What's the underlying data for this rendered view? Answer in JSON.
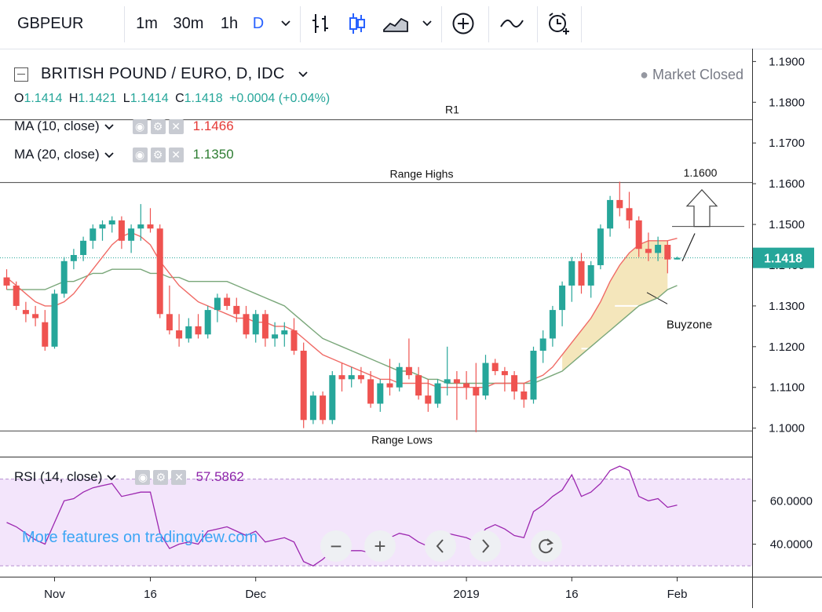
{
  "toolbar": {
    "symbol": "GBPEUR",
    "timeframes": [
      "1m",
      "30m",
      "1h",
      "D"
    ],
    "active_timeframe": "D"
  },
  "legend": {
    "title": "BRITISH POUND / EURO, D, IDC",
    "market_status": "Market Closed",
    "ohlc": {
      "o_label": "O",
      "o": "1.1414",
      "h_label": "H",
      "h": "1.1421",
      "l_label": "L",
      "l": "1.1414",
      "c_label": "C",
      "c": "1.1418",
      "change": "+0.0004 (+0.04%)"
    }
  },
  "indicators": {
    "ma10": {
      "label": "MA (10, close)",
      "value": "1.1466",
      "color": "#e53935"
    },
    "ma20": {
      "label": "MA (20, close)",
      "value": "1.1350",
      "color": "#2e7d32"
    },
    "rsi": {
      "label": "RSI (14, close)",
      "value": "57.5862",
      "color": "#8e24aa"
    }
  },
  "watermark": "More features on tradingview.com",
  "colors": {
    "up": "#26a69a",
    "down": "#ef5350",
    "ma10": "#f06b66",
    "ma20": "#7aa77a",
    "rsi": "#9c27b0",
    "rsi_band": "#f3e5fb",
    "buyzone": "#f3e3b4",
    "price_tag": "#26a69a"
  },
  "chart_data": {
    "type": "candlestick",
    "symbol": "GBPEUR",
    "interval": "D",
    "ylim": [
      1.093,
      1.192
    ],
    "y_ticks": [
      "1.1900",
      "1.1800",
      "1.1700",
      "1.1600",
      "1.1500",
      "1.1400",
      "1.1300",
      "1.1200",
      "1.1100",
      "1.1000"
    ],
    "x_ticks": [
      {
        "label": "Nov",
        "index": 5
      },
      {
        "label": "16",
        "index": 15
      },
      {
        "label": "Dec",
        "index": 26
      },
      {
        "label": "2019",
        "index": 48
      },
      {
        "label": "16",
        "index": 59
      },
      {
        "label": "Feb",
        "index": 70
      }
    ],
    "last_price": "1.1418",
    "annotations": {
      "r1": {
        "label": "R1",
        "price": 1.1757
      },
      "range_highs": {
        "label": "Range Highs",
        "price": 1.1603
      },
      "range_lows": {
        "label": "Range Lows",
        "price": 1.0993
      },
      "target": {
        "label": "1.1600",
        "price": 1.1495
      },
      "buyzone_label": "Buyzone"
    },
    "candles": [
      [
        1.137,
        1.139,
        1.134,
        1.135
      ],
      [
        1.135,
        1.136,
        1.129,
        1.13
      ],
      [
        1.129,
        1.131,
        1.126,
        1.128
      ],
      [
        1.128,
        1.13,
        1.125,
        1.127
      ],
      [
        1.126,
        1.129,
        1.119,
        1.12
      ],
      [
        1.12,
        1.134,
        1.1195,
        1.133
      ],
      [
        1.133,
        1.142,
        1.132,
        1.141
      ],
      [
        1.141,
        1.144,
        1.139,
        1.1425
      ],
      [
        1.1425,
        1.147,
        1.141,
        1.146
      ],
      [
        1.146,
        1.15,
        1.144,
        1.149
      ],
      [
        1.149,
        1.151,
        1.146,
        1.15
      ],
      [
        1.15,
        1.152,
        1.148,
        1.151
      ],
      [
        1.151,
        1.152,
        1.144,
        1.146
      ],
      [
        1.146,
        1.15,
        1.143,
        1.149
      ],
      [
        1.149,
        1.155,
        1.146,
        1.15
      ],
      [
        1.15,
        1.154,
        1.148,
        1.149
      ],
      [
        1.149,
        1.15,
        1.127,
        1.128
      ],
      [
        1.128,
        1.135,
        1.123,
        1.124
      ],
      [
        1.124,
        1.128,
        1.12,
        1.122
      ],
      [
        1.122,
        1.127,
        1.121,
        1.125
      ],
      [
        1.125,
        1.128,
        1.122,
        1.123
      ],
      [
        1.123,
        1.13,
        1.122,
        1.129
      ],
      [
        1.129,
        1.133,
        1.126,
        1.132
      ],
      [
        1.132,
        1.133,
        1.129,
        1.13
      ],
      [
        1.13,
        1.132,
        1.126,
        1.128
      ],
      [
        1.128,
        1.13,
        1.122,
        1.123
      ],
      [
        1.123,
        1.129,
        1.121,
        1.128
      ],
      [
        1.128,
        1.129,
        1.12,
        1.122
      ],
      [
        1.122,
        1.126,
        1.12,
        1.123
      ],
      [
        1.123,
        1.126,
        1.12,
        1.124
      ],
      [
        1.124,
        1.127,
        1.118,
        1.119
      ],
      [
        1.119,
        1.121,
        1.1,
        1.102
      ],
      [
        1.102,
        1.109,
        1.101,
        1.108
      ],
      [
        1.108,
        1.109,
        1.101,
        1.102
      ],
      [
        1.102,
        1.114,
        1.101,
        1.113
      ],
      [
        1.113,
        1.116,
        1.109,
        1.112
      ],
      [
        1.112,
        1.115,
        1.11,
        1.113
      ],
      [
        1.113,
        1.115,
        1.111,
        1.112
      ],
      [
        1.112,
        1.114,
        1.105,
        1.106
      ],
      [
        1.106,
        1.112,
        1.104,
        1.111
      ],
      [
        1.111,
        1.117,
        1.108,
        1.11
      ],
      [
        1.11,
        1.116,
        1.109,
        1.115
      ],
      [
        1.115,
        1.122,
        1.112,
        1.113
      ],
      [
        1.113,
        1.115,
        1.107,
        1.108
      ],
      [
        1.108,
        1.112,
        1.104,
        1.106
      ],
      [
        1.106,
        1.112,
        1.105,
        1.111
      ],
      [
        1.111,
        1.12,
        1.108,
        1.112
      ],
      [
        1.112,
        1.114,
        1.102,
        1.111
      ],
      [
        1.111,
        1.114,
        1.107,
        1.11
      ],
      [
        1.11,
        1.116,
        1.099,
        1.108
      ],
      [
        1.108,
        1.118,
        1.107,
        1.116
      ],
      [
        1.116,
        1.117,
        1.113,
        1.114
      ],
      [
        1.114,
        1.115,
        1.109,
        1.113
      ],
      [
        1.113,
        1.114,
        1.107,
        1.109
      ],
      [
        1.109,
        1.111,
        1.105,
        1.107
      ],
      [
        1.107,
        1.12,
        1.106,
        1.119
      ],
      [
        1.119,
        1.124,
        1.116,
        1.122
      ],
      [
        1.122,
        1.13,
        1.12,
        1.129
      ],
      [
        1.129,
        1.136,
        1.125,
        1.135
      ],
      [
        1.135,
        1.142,
        1.131,
        1.141
      ],
      [
        1.141,
        1.143,
        1.133,
        1.135
      ],
      [
        1.135,
        1.141,
        1.132,
        1.14
      ],
      [
        1.14,
        1.15,
        1.139,
        1.149
      ],
      [
        1.149,
        1.157,
        1.147,
        1.156
      ],
      [
        1.156,
        1.1605,
        1.152,
        1.154
      ],
      [
        1.154,
        1.158,
        1.149,
        1.151
      ],
      [
        1.151,
        1.152,
        1.142,
        1.144
      ],
      [
        1.144,
        1.148,
        1.141,
        1.143
      ],
      [
        1.143,
        1.147,
        1.141,
        1.145
      ],
      [
        1.145,
        1.146,
        1.138,
        1.1414
      ],
      [
        1.1414,
        1.1421,
        1.1414,
        1.1418
      ]
    ],
    "ma10": [
      1.137,
      1.135,
      1.133,
      1.131,
      1.13,
      1.13,
      1.131,
      1.133,
      1.136,
      1.139,
      1.142,
      1.145,
      1.147,
      1.148,
      1.147,
      1.145,
      1.141,
      1.138,
      1.135,
      1.133,
      1.131,
      1.13,
      1.129,
      1.128,
      1.127,
      1.127,
      1.126,
      1.126,
      1.125,
      1.125,
      1.124,
      1.122,
      1.12,
      1.118,
      1.117,
      1.116,
      1.115,
      1.114,
      1.113,
      1.112,
      1.112,
      1.111,
      1.111,
      1.111,
      1.111,
      1.11,
      1.11,
      1.11,
      1.11,
      1.11,
      1.11,
      1.111,
      1.111,
      1.111,
      1.111,
      1.112,
      1.113,
      1.115,
      1.118,
      1.121,
      1.124,
      1.127,
      1.131,
      1.136,
      1.14,
      1.143,
      1.145,
      1.146,
      1.146,
      1.146,
      1.1466
    ],
    "ma20": [
      1.134,
      1.134,
      1.134,
      1.134,
      1.134,
      1.135,
      1.136,
      1.136,
      1.137,
      1.138,
      1.138,
      1.139,
      1.139,
      1.139,
      1.139,
      1.138,
      1.138,
      1.137,
      1.137,
      1.136,
      1.136,
      1.136,
      1.136,
      1.136,
      1.135,
      1.134,
      1.133,
      1.132,
      1.131,
      1.13,
      1.128,
      1.126,
      1.124,
      1.122,
      1.121,
      1.12,
      1.119,
      1.118,
      1.117,
      1.116,
      1.115,
      1.114,
      1.114,
      1.113,
      1.112,
      1.112,
      1.111,
      1.111,
      1.111,
      1.111,
      1.111,
      1.111,
      1.111,
      1.111,
      1.111,
      1.111,
      1.112,
      1.113,
      1.114,
      1.116,
      1.118,
      1.12,
      1.122,
      1.124,
      1.126,
      1.128,
      1.13,
      1.131,
      1.132,
      1.134,
      1.135
    ],
    "rsi": {
      "ylim": [
        25,
        80
      ],
      "y_ticks": [
        "60.0000",
        "40.0000"
      ],
      "band": [
        30,
        70
      ],
      "values": [
        50,
        48,
        45,
        42,
        40,
        50,
        60,
        61,
        64,
        66,
        67,
        68,
        62,
        63,
        64,
        64,
        45,
        38,
        40,
        41,
        40,
        46,
        47,
        48,
        46,
        44,
        46,
        41,
        42,
        43,
        41,
        32,
        30,
        33,
        37,
        36,
        37,
        37,
        36,
        40,
        43,
        45,
        44,
        41,
        39,
        44,
        45,
        44,
        43,
        41,
        47,
        49,
        47,
        44,
        43,
        55,
        58,
        62,
        65,
        72,
        62,
        64,
        68,
        74,
        76,
        74,
        62,
        60,
        61,
        57,
        58
      ]
    }
  }
}
